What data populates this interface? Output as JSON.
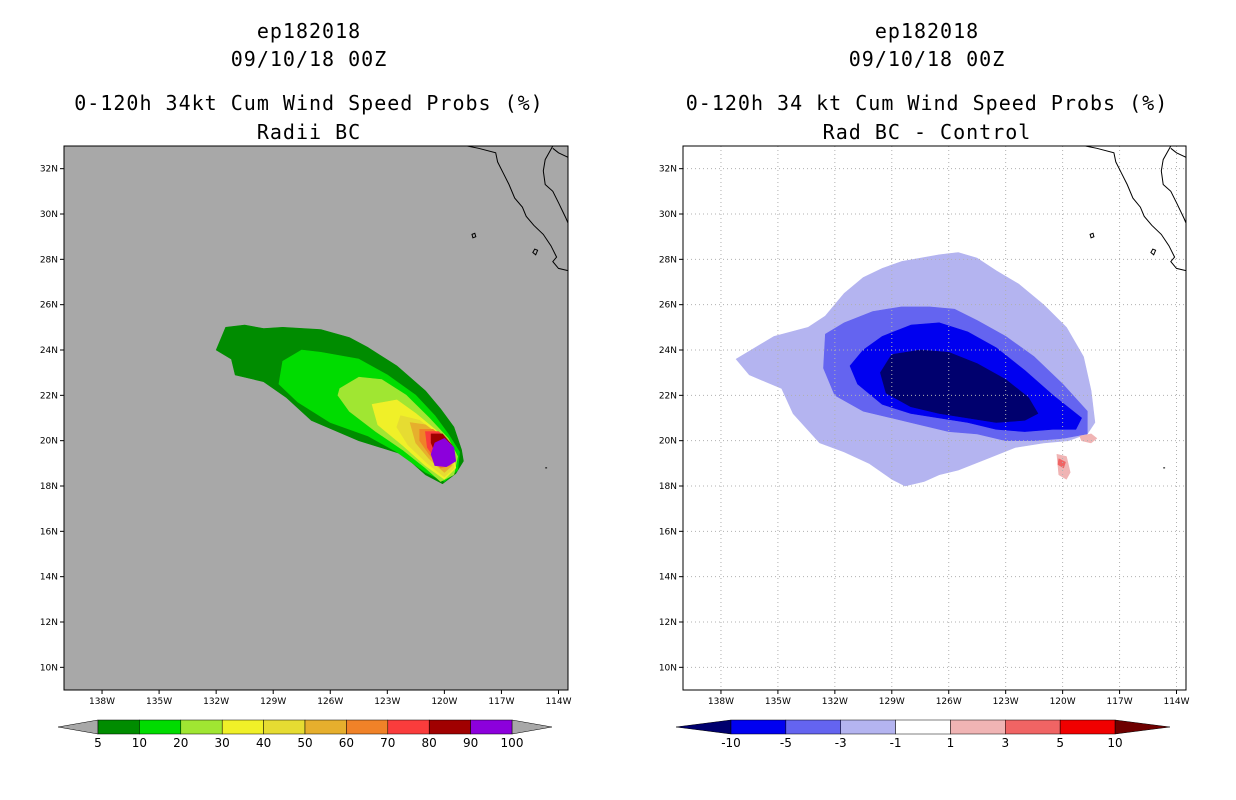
{
  "chart_data": [
    {
      "type": "heatmap",
      "storm": "ep182018",
      "date": "09/10/18 00Z",
      "title": "0-120h 34kt Cum Wind Speed Probs (%)",
      "subtitle": "Radii BC",
      "background_color": "#a8a8a8",
      "x_ticks": [
        "138W",
        "135W",
        "132W",
        "129W",
        "126W",
        "123W",
        "120W",
        "117W",
        "114W"
      ],
      "y_ticks": [
        "32N",
        "30N",
        "28N",
        "26N",
        "24N",
        "22N",
        "20N",
        "18N",
        "16N",
        "14N",
        "12N",
        "10N"
      ],
      "x_range_lon": [
        -140.0,
        -113.5
      ],
      "y_range_lat": [
        9.0,
        33.0
      ],
      "colorbar": {
        "labels": [
          "5",
          "10",
          "20",
          "30",
          "40",
          "50",
          "60",
          "70",
          "80",
          "90",
          "100"
        ],
        "colors": [
          "#008c00",
          "#00dc00",
          "#a0e632",
          "#f0f028",
          "#e6dc32",
          "#e6af2d",
          "#f08228",
          "#fa3c3c",
          "#a00000",
          "#8c00dc"
        ],
        "end_colors": [
          "#a8a8a8",
          "#a8a8a8"
        ]
      },
      "contours": [
        {
          "level": "5",
          "color": "#008c00",
          "lonlat": [
            [
              -131.5,
              25.0
            ],
            [
              -130.5,
              25.1
            ],
            [
              -129.5,
              24.95
            ],
            [
              -128.5,
              25.0
            ],
            [
              -126.5,
              24.9
            ],
            [
              -125.0,
              24.55
            ],
            [
              -124.0,
              24.1
            ],
            [
              -122.5,
              23.3
            ],
            [
              -121.0,
              22.2
            ],
            [
              -120.2,
              21.4
            ],
            [
              -119.5,
              20.6
            ],
            [
              -119.1,
              19.6
            ],
            [
              -119.0,
              19.1
            ],
            [
              -119.4,
              18.55
            ],
            [
              -120.1,
              18.1
            ],
            [
              -121.0,
              18.5
            ],
            [
              -122.2,
              19.4
            ],
            [
              -124.5,
              20.0
            ],
            [
              -127.0,
              20.9
            ],
            [
              -128.3,
              21.9
            ],
            [
              -129.5,
              22.6
            ],
            [
              -131.0,
              22.9
            ],
            [
              -131.2,
              23.6
            ],
            [
              -132.0,
              24.0
            ]
          ]
        },
        {
          "level": "10",
          "color": "#00dc00",
          "lonlat": [
            [
              -128.5,
              23.5
            ],
            [
              -127.5,
              24.0
            ],
            [
              -126.5,
              23.9
            ],
            [
              -124.5,
              23.6
            ],
            [
              -123.0,
              22.9
            ],
            [
              -121.5,
              22.0
            ],
            [
              -120.5,
              21.1
            ],
            [
              -119.8,
              20.3
            ],
            [
              -119.2,
              19.5
            ],
            [
              -119.3,
              18.7
            ],
            [
              -120.0,
              18.2
            ],
            [
              -121.0,
              18.6
            ],
            [
              -122.5,
              19.5
            ],
            [
              -124.0,
              20.2
            ],
            [
              -126.0,
              20.8
            ],
            [
              -127.7,
              21.7
            ],
            [
              -128.7,
              22.5
            ]
          ]
        },
        {
          "level": "20",
          "color": "#a0e632",
          "lonlat": [
            [
              -125.5,
              22.3
            ],
            [
              -124.5,
              22.8
            ],
            [
              -123.3,
              22.7
            ],
            [
              -122.0,
              22.0
            ],
            [
              -120.8,
              21.0
            ],
            [
              -119.8,
              20.1
            ],
            [
              -119.3,
              19.3
            ],
            [
              -119.5,
              18.5
            ],
            [
              -120.2,
              18.2
            ],
            [
              -121.0,
              18.8
            ],
            [
              -122.2,
              19.6
            ],
            [
              -123.6,
              20.4
            ],
            [
              -125.0,
              21.3
            ],
            [
              -125.6,
              22.0
            ]
          ]
        },
        {
          "level": "30",
          "color": "#f0f028",
          "lonlat": [
            [
              -123.8,
              21.6
            ],
            [
              -122.5,
              21.8
            ],
            [
              -121.5,
              21.2
            ],
            [
              -120.5,
              20.5
            ],
            [
              -119.6,
              19.7
            ],
            [
              -119.4,
              18.8
            ],
            [
              -120.0,
              18.3
            ],
            [
              -121.0,
              18.9
            ],
            [
              -122.2,
              19.8
            ],
            [
              -123.5,
              20.7
            ]
          ]
        },
        {
          "level": "40",
          "color": "#e6dc32",
          "lonlat": [
            [
              -122.3,
              21.1
            ],
            [
              -121.3,
              20.9
            ],
            [
              -120.4,
              20.3
            ],
            [
              -119.6,
              19.6
            ],
            [
              -119.5,
              18.8
            ],
            [
              -120.0,
              18.4
            ],
            [
              -120.9,
              19.0
            ],
            [
              -121.9,
              19.8
            ],
            [
              -122.5,
              20.6
            ]
          ]
        },
        {
          "level": "50",
          "color": "#e6af2d",
          "lonlat": [
            [
              -121.8,
              20.8
            ],
            [
              -121.0,
              20.7
            ],
            [
              -120.2,
              20.2
            ],
            [
              -119.6,
              19.5
            ],
            [
              -119.6,
              18.9
            ],
            [
              -120.0,
              18.6
            ],
            [
              -120.8,
              19.2
            ],
            [
              -121.5,
              19.9
            ]
          ]
        },
        {
          "level": "60",
          "color": "#f08228",
          "lonlat": [
            [
              -121.3,
              20.5
            ],
            [
              -120.6,
              20.5
            ],
            [
              -119.9,
              20.0
            ],
            [
              -119.5,
              19.4
            ],
            [
              -119.7,
              18.9
            ],
            [
              -120.2,
              18.8
            ],
            [
              -120.8,
              19.4
            ],
            [
              -121.3,
              20.0
            ]
          ]
        },
        {
          "level": "70",
          "color": "#fa3c3c",
          "lonlat": [
            [
              -121.0,
              20.4
            ],
            [
              -120.3,
              20.4
            ],
            [
              -119.7,
              19.9
            ],
            [
              -119.5,
              19.3
            ],
            [
              -119.8,
              19.0
            ],
            [
              -120.4,
              19.1
            ],
            [
              -120.9,
              19.7
            ]
          ]
        },
        {
          "level": "80",
          "color": "#a00000",
          "lonlat": [
            [
              -120.7,
              20.3
            ],
            [
              -120.1,
              20.3
            ],
            [
              -119.6,
              19.8
            ],
            [
              -119.5,
              19.2
            ],
            [
              -119.9,
              19.1
            ],
            [
              -120.4,
              19.3
            ],
            [
              -120.7,
              19.9
            ]
          ]
        },
        {
          "level": "90",
          "color": "#8c00dc",
          "lonlat": [
            [
              -120.5,
              19.9
            ],
            [
              -120.0,
              20.1
            ],
            [
              -119.5,
              19.7
            ],
            [
              -119.4,
              19.1
            ],
            [
              -119.9,
              18.85
            ],
            [
              -120.5,
              18.9
            ],
            [
              -120.7,
              19.4
            ]
          ]
        }
      ]
    },
    {
      "type": "heatmap",
      "storm": "ep182018",
      "date": "09/10/18 00Z",
      "title": "0-120h 34 kt Cum Wind Speed Probs (%)",
      "subtitle": "Rad BC - Control",
      "background_color": "#ffffff",
      "grid": true,
      "x_ticks": [
        "138W",
        "135W",
        "132W",
        "129W",
        "126W",
        "123W",
        "120W",
        "117W",
        "114W"
      ],
      "y_ticks": [
        "32N",
        "30N",
        "28N",
        "26N",
        "24N",
        "22N",
        "20N",
        "18N",
        "16N",
        "14N",
        "12N",
        "10N"
      ],
      "x_range_lon": [
        -140.0,
        -113.5
      ],
      "y_range_lat": [
        9.0,
        33.0
      ],
      "colorbar": {
        "labels": [
          "-10",
          "-5",
          "-3",
          "-1",
          "1",
          "3",
          "5",
          "10"
        ],
        "colors": [
          "#0000f0",
          "#6464f0",
          "#b4b4f0",
          "#ffffff",
          "#f0b4b4",
          "#f06464",
          "#f00000"
        ],
        "end_colors": [
          "#00006e",
          "#6e0000"
        ]
      },
      "contours": [
        {
          "level": "-1",
          "color": "#b4b4f0",
          "lonlat": [
            [
              -132.5,
              25.5
            ],
            [
              -131.5,
              26.5
            ],
            [
              -130.5,
              27.2
            ],
            [
              -129.5,
              27.6
            ],
            [
              -128.5,
              27.9
            ],
            [
              -127.5,
              28.05
            ],
            [
              -126.5,
              28.2
            ],
            [
              -125.5,
              28.3
            ],
            [
              -124.5,
              28.05
            ],
            [
              -123.5,
              27.5
            ],
            [
              -122.3,
              26.9
            ],
            [
              -121.0,
              26.0
            ],
            [
              -119.8,
              25.0
            ],
            [
              -118.9,
              23.7
            ],
            [
              -118.5,
              22.2
            ],
            [
              -118.3,
              20.8
            ],
            [
              -118.7,
              20.3
            ],
            [
              -119.7,
              20.0
            ],
            [
              -121.0,
              19.9
            ],
            [
              -122.5,
              19.7
            ],
            [
              -124.0,
              19.2
            ],
            [
              -125.5,
              18.7
            ],
            [
              -126.5,
              18.5
            ],
            [
              -127.3,
              18.2
            ],
            [
              -128.3,
              18.0
            ],
            [
              -129.0,
              18.3
            ],
            [
              -130.2,
              19.0
            ],
            [
              -131.5,
              19.5
            ],
            [
              -132.8,
              19.9
            ],
            [
              -134.2,
              21.2
            ],
            [
              -134.8,
              22.3
            ],
            [
              -136.5,
              22.9
            ],
            [
              -137.2,
              23.6
            ],
            [
              -135.2,
              24.6
            ],
            [
              -133.4,
              25.0
            ]
          ]
        },
        {
          "level": "-3",
          "color": "#6464f0",
          "lonlat": [
            [
              -132.5,
              24.7
            ],
            [
              -131.5,
              25.2
            ],
            [
              -130.0,
              25.7
            ],
            [
              -128.5,
              25.9
            ],
            [
              -127.0,
              25.9
            ],
            [
              -125.7,
              25.8
            ],
            [
              -124.5,
              25.3
            ],
            [
              -123.0,
              24.6
            ],
            [
              -121.5,
              23.7
            ],
            [
              -120.0,
              22.5
            ],
            [
              -118.7,
              21.3
            ],
            [
              -118.7,
              20.3
            ],
            [
              -120.0,
              20.1
            ],
            [
              -121.5,
              20.0
            ],
            [
              -123.0,
              20.0
            ],
            [
              -124.5,
              20.3
            ],
            [
              -126.0,
              20.4
            ],
            [
              -127.5,
              20.7
            ],
            [
              -129.0,
              21.0
            ],
            [
              -130.5,
              21.3
            ],
            [
              -132.0,
              22.0
            ],
            [
              -132.6,
              23.2
            ]
          ]
        },
        {
          "level": "-5",
          "color": "#0000f0",
          "lonlat": [
            [
              -130.5,
              24.0
            ],
            [
              -129.5,
              24.6
            ],
            [
              -128.0,
              25.1
            ],
            [
              -126.5,
              25.2
            ],
            [
              -125.0,
              24.8
            ],
            [
              -123.5,
              24.1
            ],
            [
              -122.0,
              23.1
            ],
            [
              -120.5,
              22.0
            ],
            [
              -119.0,
              21.0
            ],
            [
              -119.3,
              20.5
            ],
            [
              -120.5,
              20.5
            ],
            [
              -122.0,
              20.4
            ],
            [
              -123.5,
              20.5
            ],
            [
              -125.0,
              20.8
            ],
            [
              -126.5,
              21.0
            ],
            [
              -128.0,
              21.2
            ],
            [
              -129.5,
              21.6
            ],
            [
              -130.8,
              22.5
            ],
            [
              -131.2,
              23.3
            ]
          ]
        },
        {
          "level": "-10",
          "color": "#00006e",
          "lonlat": [
            [
              -129.0,
              23.8
            ],
            [
              -127.5,
              24.0
            ],
            [
              -126.0,
              23.9
            ],
            [
              -124.5,
              23.4
            ],
            [
              -123.0,
              22.7
            ],
            [
              -121.8,
              21.9
            ],
            [
              -121.3,
              21.2
            ],
            [
              -122.0,
              20.9
            ],
            [
              -123.5,
              20.8
            ],
            [
              -125.0,
              21.0
            ],
            [
              -126.5,
              21.2
            ],
            [
              -128.0,
              21.5
            ],
            [
              -129.3,
              22.1
            ],
            [
              -129.6,
              23.0
            ]
          ]
        },
        {
          "level": "3",
          "color": "#f0b4b4",
          "lonlat": [
            [
              -120.3,
              19.4
            ],
            [
              -119.8,
              19.3
            ],
            [
              -119.6,
              18.6
            ],
            [
              -119.8,
              18.3
            ],
            [
              -120.2,
              18.5
            ]
          ]
        },
        {
          "level": "3",
          "color": "#f0b4b4",
          "lonlat": [
            [
              -119.1,
              20.2
            ],
            [
              -118.5,
              20.3
            ],
            [
              -118.2,
              20.1
            ],
            [
              -118.5,
              19.9
            ],
            [
              -119.0,
              20.0
            ]
          ]
        },
        {
          "level": "5",
          "color": "#f06464",
          "lonlat": [
            [
              -120.2,
              19.2
            ],
            [
              -119.85,
              19.05
            ],
            [
              -119.95,
              18.8
            ],
            [
              -120.25,
              18.95
            ]
          ]
        }
      ]
    }
  ]
}
